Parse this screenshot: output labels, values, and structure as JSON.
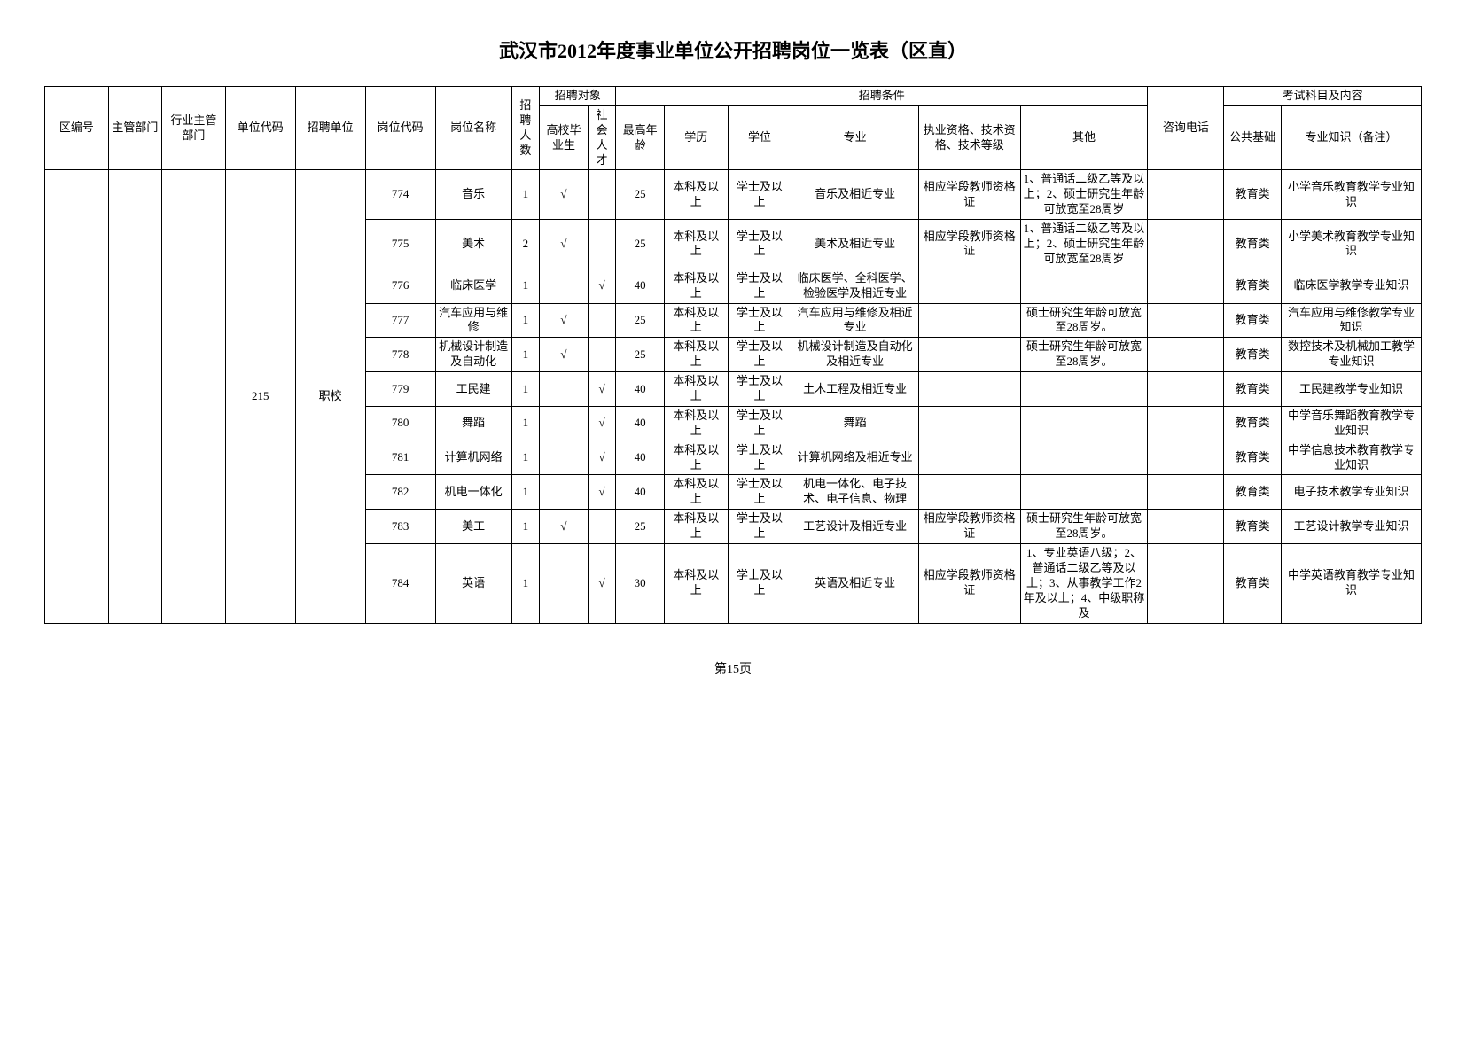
{
  "title": "武汉市2012年度事业单位公开招聘岗位一览表（区直）",
  "footer": "第15页",
  "headers": {
    "qbh": "区编号",
    "zgbm": "主管部门",
    "hyzg": "行业主管部门",
    "dwdm": "单位代码",
    "zpdw": "招聘单位",
    "gwdm": "岗位代码",
    "gwmc": "岗位名称",
    "zprs": "招聘人数",
    "zpdx": "招聘对象",
    "gxbys": "高校毕业生",
    "shrc": "社会人才",
    "zptj": "招聘条件",
    "zgln": "最高年龄",
    "xl": "学历",
    "xw": "学位",
    "zy": "专业",
    "zyzg": "执业资格、技术资格、技术等级",
    "qt": "其他",
    "zxdh": "咨询电话",
    "kskm": "考试科目及内容",
    "ggjc": "公共基础",
    "zyzs": "专业知识（备注）"
  },
  "unitCode": "215",
  "unitName": "职校",
  "rows": [
    {
      "gwdm": "774",
      "gwmc": "音乐",
      "zprs": "1",
      "gxbys": "√",
      "shrc": "",
      "zgln": "25",
      "xl": "本科及以上",
      "xw": "学士及以上",
      "zy": "音乐及相近专业",
      "zyzg": "相应学段教师资格证",
      "qt": "1、普通话二级乙等及以上；2、硕士研究生年龄可放宽至28周岁",
      "zxdh": "",
      "ggjc": "教育类",
      "zyzs": "小学音乐教育教学专业知识"
    },
    {
      "gwdm": "775",
      "gwmc": "美术",
      "zprs": "2",
      "gxbys": "√",
      "shrc": "",
      "zgln": "25",
      "xl": "本科及以上",
      "xw": "学士及以上",
      "zy": "美术及相近专业",
      "zyzg": "相应学段教师资格证",
      "qt": "1、普通话二级乙等及以上；2、硕士研究生年龄可放宽至28周岁",
      "zxdh": "",
      "ggjc": "教育类",
      "zyzs": "小学美术教育教学专业知识"
    },
    {
      "gwdm": "776",
      "gwmc": "临床医学",
      "zprs": "1",
      "gxbys": "",
      "shrc": "√",
      "zgln": "40",
      "xl": "本科及以上",
      "xw": "学士及以上",
      "zy": "临床医学、全科医学、检验医学及相近专业",
      "zyzg": "",
      "qt": "",
      "zxdh": "",
      "ggjc": "教育类",
      "zyzs": "临床医学教学专业知识"
    },
    {
      "gwdm": "777",
      "gwmc": "汽车应用与维修",
      "zprs": "1",
      "gxbys": "√",
      "shrc": "",
      "zgln": "25",
      "xl": "本科及以上",
      "xw": "学士及以上",
      "zy": "汽车应用与维修及相近专业",
      "zyzg": "",
      "qt": "硕士研究生年龄可放宽至28周岁。",
      "zxdh": "",
      "ggjc": "教育类",
      "zyzs": "汽车应用与维修教学专业知识"
    },
    {
      "gwdm": "778",
      "gwmc": "机械设计制造及自动化",
      "zprs": "1",
      "gxbys": "√",
      "shrc": "",
      "zgln": "25",
      "xl": "本科及以上",
      "xw": "学士及以上",
      "zy": "机械设计制造及自动化及相近专业",
      "zyzg": "",
      "qt": "硕士研究生年龄可放宽至28周岁。",
      "zxdh": "",
      "ggjc": "教育类",
      "zyzs": "数控技术及机械加工教学专业知识"
    },
    {
      "gwdm": "779",
      "gwmc": "工民建",
      "zprs": "1",
      "gxbys": "",
      "shrc": "√",
      "zgln": "40",
      "xl": "本科及以上",
      "xw": "学士及以上",
      "zy": "土木工程及相近专业",
      "zyzg": "",
      "qt": "",
      "zxdh": "",
      "ggjc": "教育类",
      "zyzs": "工民建教学专业知识"
    },
    {
      "gwdm": "780",
      "gwmc": "舞蹈",
      "zprs": "1",
      "gxbys": "",
      "shrc": "√",
      "zgln": "40",
      "xl": "本科及以上",
      "xw": "学士及以上",
      "zy": "舞蹈",
      "zyzg": "",
      "qt": "",
      "zxdh": "",
      "ggjc": "教育类",
      "zyzs": "中学音乐舞蹈教育教学专业知识"
    },
    {
      "gwdm": "781",
      "gwmc": "计算机网络",
      "zprs": "1",
      "gxbys": "",
      "shrc": "√",
      "zgln": "40",
      "xl": "本科及以上",
      "xw": "学士及以上",
      "zy": "计算机网络及相近专业",
      "zyzg": "",
      "qt": "",
      "zxdh": "",
      "ggjc": "教育类",
      "zyzs": "中学信息技术教育教学专业知识"
    },
    {
      "gwdm": "782",
      "gwmc": "机电一体化",
      "zprs": "1",
      "gxbys": "",
      "shrc": "√",
      "zgln": "40",
      "xl": "本科及以上",
      "xw": "学士及以上",
      "zy": "机电一体化、电子技术、电子信息、物理",
      "zyzg": "",
      "qt": "",
      "zxdh": "",
      "ggjc": "教育类",
      "zyzs": "电子技术教学专业知识"
    },
    {
      "gwdm": "783",
      "gwmc": "美工",
      "zprs": "1",
      "gxbys": "√",
      "shrc": "",
      "zgln": "25",
      "xl": "本科及以上",
      "xw": "学士及以上",
      "zy": "工艺设计及相近专业",
      "zyzg": "相应学段教师资格证",
      "qt": "硕士研究生年龄可放宽至28周岁。",
      "zxdh": "",
      "ggjc": "教育类",
      "zyzs": "工艺设计教学专业知识"
    },
    {
      "gwdm": "784",
      "gwmc": "英语",
      "zprs": "1",
      "gxbys": "",
      "shrc": "√",
      "zgln": "30",
      "xl": "本科及以上",
      "xw": "学士及以上",
      "zy": "英语及相近专业",
      "zyzg": "相应学段教师资格证",
      "qt": "1、专业英语八级；2、普通话二级乙等及以上；3、从事教学工作2年及以上；4、中级职称及",
      "zxdh": "",
      "ggjc": "教育类",
      "zyzs": "中学英语教育教学专业知识"
    }
  ]
}
